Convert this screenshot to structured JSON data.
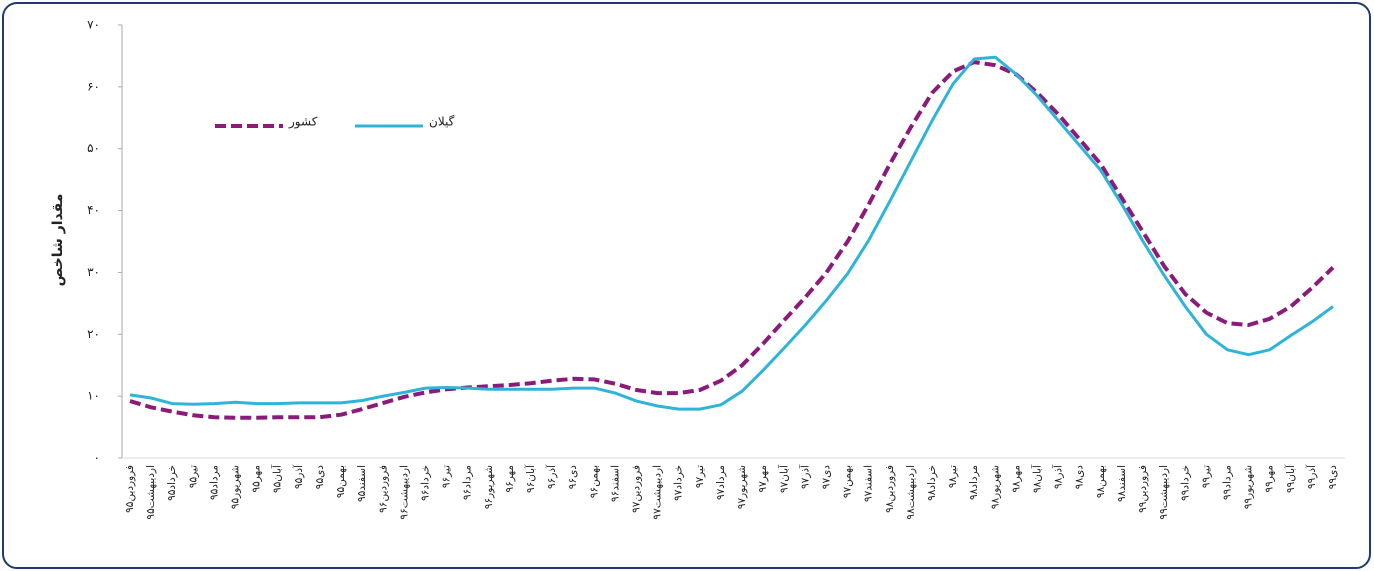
{
  "chart_data": {
    "type": "line",
    "y_label": "مقدار شاخص",
    "categories": [
      "فروردین۹۵",
      "اردیبهشت۹۵",
      "خرداد۹۵",
      "تیر۹۵",
      "مرداد۹۵",
      "شهریور۹۵",
      "مهر۹۵",
      "آبان۹۵",
      "آذر۹۵",
      "دی۹۵",
      "بهمن۹۵",
      "اسفند۹۵",
      "فروردین۹۶",
      "اردیبهشت۹۶",
      "خرداد۹۶",
      "تیر۹۶",
      "مرداد۹۶",
      "شهریور۹۶",
      "مهر۹۶",
      "آبان۹۶",
      "آذر۹۶",
      "دی۹۶",
      "بهمن۹۶",
      "اسفند۹۶",
      "فروردین۹۷",
      "اردیبهشت۹۷",
      "خرداد۹۷",
      "تیر۹۷",
      "مرداد۹۷",
      "شهریور۹۷",
      "مهر۹۷",
      "آبان۹۷",
      "آذر۹۷",
      "دی۹۷",
      "بهمن۹۷",
      "اسفند۹۷",
      "فروردین۹۸",
      "اردیبهشت۹۸",
      "خرداد۹۸",
      "تیر۹۸",
      "مرداد۹۸",
      "شهریور۹۸",
      "مهر۹۸",
      "آبان۹۸",
      "آذر۹۸",
      "دی۹۸",
      "بهمن۹۸",
      "اسفند۹۸",
      "فروردین۹۹",
      "اردیبهشت۹۹",
      "خرداد۹۹",
      "تیر۹۹",
      "مرداد۹۹",
      "شهریور۹۹",
      "مهر۹۹",
      "آبان۹۹",
      "آذر۹۹",
      "دی۹۹"
    ],
    "series": [
      {
        "name": "کشور",
        "color": "#8b1a7a",
        "dashed": true,
        "values": [
          9.2,
          8.2,
          7.5,
          6.9,
          6.6,
          6.5,
          6.5,
          6.6,
          6.6,
          6.6,
          7.0,
          7.9,
          8.9,
          9.9,
          10.6,
          11.1,
          11.4,
          11.6,
          11.8,
          12.1,
          12.5,
          12.8,
          12.7,
          12.0,
          11.0,
          10.5,
          10.5,
          11.0,
          12.5,
          15.0,
          18.5,
          22.3,
          26.0,
          30.0,
          35.0,
          41.0,
          47.5,
          53.5,
          59.0,
          62.5,
          64.0,
          63.5,
          62.0,
          59.0,
          55.5,
          51.5,
          47.5,
          42.0,
          36.5,
          31.0,
          26.5,
          23.5,
          21.8,
          21.5,
          22.5,
          24.5,
          27.5,
          30.8
        ]
      },
      {
        "name": "گیلان",
        "color": "#2eb4d8",
        "dashed": false,
        "values": [
          10.2,
          9.7,
          8.8,
          8.7,
          8.8,
          9.0,
          8.8,
          8.8,
          8.9,
          8.9,
          8.9,
          9.3,
          10.0,
          10.6,
          11.3,
          11.4,
          11.3,
          11.1,
          11.1,
          11.1,
          11.1,
          11.3,
          11.3,
          10.5,
          9.2,
          8.4,
          7.9,
          7.9,
          8.6,
          10.8,
          14.2,
          17.8,
          21.5,
          25.5,
          29.8,
          35.2,
          41.5,
          48.0,
          54.5,
          60.5,
          64.5,
          64.8,
          62.0,
          58.5,
          54.5,
          50.5,
          46.5,
          41.0,
          35.0,
          29.5,
          24.5,
          20.0,
          17.5,
          16.7,
          17.5,
          19.8,
          22.0,
          24.5
        ]
      }
    ],
    "ylim": [
      0,
      70
    ],
    "yticks": [
      {
        "value": 0,
        "label": "۰"
      },
      {
        "value": 10,
        "label": "۱۰"
      },
      {
        "value": 20,
        "label": "۲۰"
      },
      {
        "value": 30,
        "label": "۳۰"
      },
      {
        "value": 40,
        "label": "۴۰"
      },
      {
        "value": 50,
        "label": "۵۰"
      },
      {
        "value": 60,
        "label": "۶۰"
      },
      {
        "value": 70,
        "label": "۷۰"
      }
    ],
    "grid": false,
    "legend": "upper left"
  }
}
